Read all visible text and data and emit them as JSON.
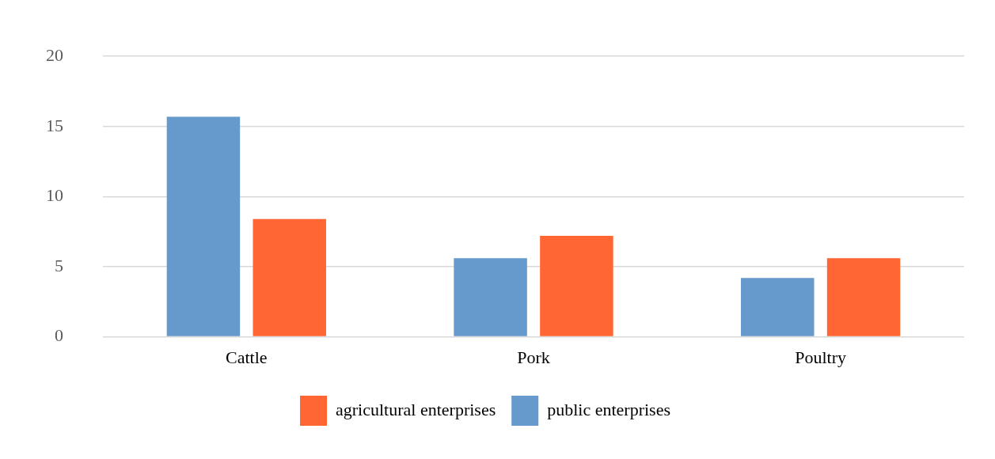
{
  "chart_data": {
    "type": "bar",
    "categories": [
      "Cattle",
      "Pork",
      "Poultry"
    ],
    "series": [
      {
        "name": "public enterprises",
        "color": "#6699cc",
        "values": [
          15.7,
          5.6,
          4.2
        ]
      },
      {
        "name": "agricultural enterprises",
        "color": "#ff6633",
        "values": [
          8.4,
          7.2,
          5.6
        ]
      }
    ],
    "ylim": [
      0,
      20
    ],
    "yticks": [
      0,
      5,
      10,
      15,
      20
    ],
    "grid": "y",
    "legend": "bottom"
  }
}
